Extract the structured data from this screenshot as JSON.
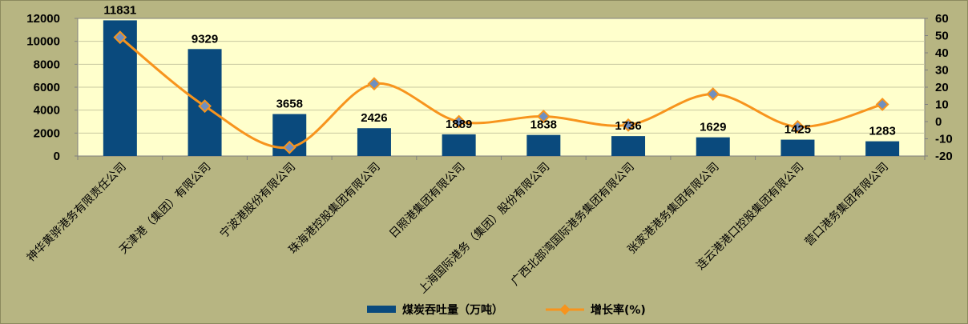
{
  "chart_data": {
    "type": "bar",
    "categories": [
      "神华黄骅港务有限责任公司",
      "天津港（集团）有限公司",
      "宁波港股份有限公司",
      "珠海港控股集团有限公司",
      "日照港集团有限公司",
      "上海国际港务（集团）股份有限公司",
      "广西北部湾国际港务集团有限公司",
      "张家港港务集团有限公司",
      "连云港港口控股集团有限公司",
      "营口港务集团有限公司"
    ],
    "series": [
      {
        "name": "煤炭吞吐量（万吨）",
        "type": "bar",
        "axis": "left",
        "color": "#0a4a7d",
        "values": [
          11831,
          9329,
          3658,
          2426,
          1889,
          1838,
          1736,
          1629,
          1425,
          1283
        ]
      },
      {
        "name": "增长率(%)",
        "type": "line",
        "axis": "right",
        "color": "#f7941d",
        "marker_color": "#6f8fc0",
        "values": [
          49,
          9,
          -15,
          22,
          0,
          3,
          -2,
          16,
          -3,
          10
        ]
      }
    ],
    "ylim": [
      0,
      12000
    ],
    "y_ticks": [
      "0",
      "2000",
      "4000",
      "6000",
      "8000",
      "10000",
      "12000"
    ],
    "y2lim": [
      -20,
      60
    ],
    "y2_ticks": [
      "-20",
      "-10",
      "0",
      "10",
      "20",
      "30",
      "40",
      "50",
      "60"
    ],
    "xlabel": "",
    "ylabel": "",
    "title": "",
    "legend_position": "bottom",
    "plot_background": "#ffffcc",
    "grid": true
  }
}
